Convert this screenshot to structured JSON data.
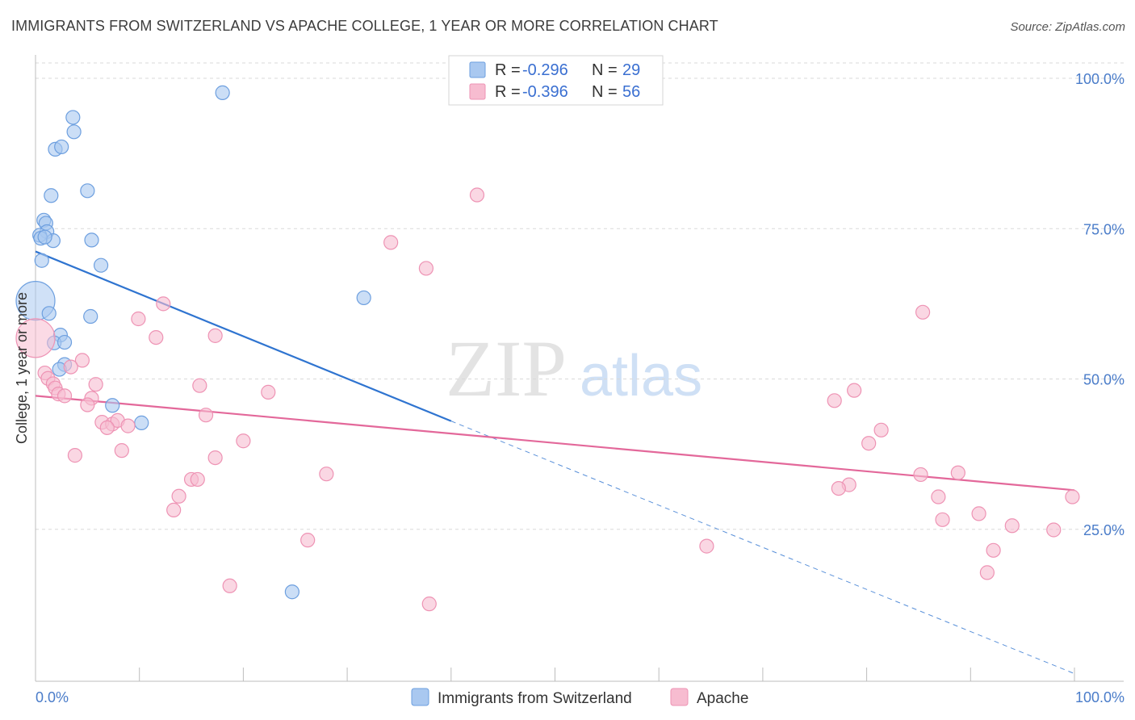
{
  "title": "IMMIGRANTS FROM SWITZERLAND VS APACHE COLLEGE, 1 YEAR OR MORE CORRELATION CHART",
  "source": "Source: ZipAtlas.com",
  "watermark": {
    "zip": "ZIP",
    "atlas": "atlas"
  },
  "colors": {
    "blue_fill": "#a9c8f0",
    "blue_stroke": "#6d9fdf",
    "blue_line": "#2f74d0",
    "pink_fill": "#f7bcd0",
    "pink_stroke": "#ee93b4",
    "pink_line": "#e3689a",
    "tick_text": "#4a7cc9",
    "grid": "#d9d9d9"
  },
  "legend": {
    "series": [
      {
        "r_label": "R =",
        "r_value": "-0.296",
        "n_label": "N =",
        "n_value": "29"
      },
      {
        "r_label": "R =",
        "r_value": "-0.396",
        "n_label": "N =",
        "n_value": "56"
      }
    ]
  },
  "chart_data": {
    "type": "scatter",
    "title": "IMMIGRANTS FROM SWITZERLAND VS APACHE COLLEGE, 1 YEAR OR MORE CORRELATION CHART",
    "xlabel": "",
    "ylabel": "College, 1 year or more",
    "xlim": [
      0,
      100
    ],
    "ylim": [
      0,
      102
    ],
    "x_tick_labels": {
      "left": "0.0%",
      "right": "100.0%"
    },
    "y_ticks": [
      {
        "value": 100,
        "label": "100.0%"
      },
      {
        "value": 75,
        "label": "75.0%"
      },
      {
        "value": 50,
        "label": "50.0%"
      },
      {
        "value": 25,
        "label": "25.0%"
      }
    ],
    "series": [
      {
        "name": "Immigrants from Switzerland",
        "color": "blue",
        "r": -0.296,
        "n": 29,
        "trend": {
          "x0": 0,
          "y0": 71.2,
          "x1": 40,
          "y1": 43.0
        },
        "trend_extension": {
          "x0": 40,
          "y0": 43.0,
          "x1": 100,
          "y1": 1.0
        },
        "points": [
          {
            "x": 18.0,
            "y": 97.6
          },
          {
            "x": 3.6,
            "y": 93.5
          },
          {
            "x": 3.7,
            "y": 91.1
          },
          {
            "x": 1.9,
            "y": 88.2
          },
          {
            "x": 2.5,
            "y": 88.6
          },
          {
            "x": 5.0,
            "y": 81.3
          },
          {
            "x": 1.5,
            "y": 80.5
          },
          {
            "x": 0.8,
            "y": 76.4
          },
          {
            "x": 1.0,
            "y": 75.9
          },
          {
            "x": 1.1,
            "y": 74.5
          },
          {
            "x": 0.4,
            "y": 73.9
          },
          {
            "x": 0.5,
            "y": 73.4
          },
          {
            "x": 1.7,
            "y": 73.0
          },
          {
            "x": 5.4,
            "y": 73.1
          },
          {
            "x": 0.6,
            "y": 69.7
          },
          {
            "x": 6.3,
            "y": 68.9
          },
          {
            "x": 0.0,
            "y": 63.0,
            "big": true
          },
          {
            "x": 31.6,
            "y": 63.5
          },
          {
            "x": 1.3,
            "y": 60.9
          },
          {
            "x": 5.3,
            "y": 60.4
          },
          {
            "x": 2.4,
            "y": 57.3
          },
          {
            "x": 1.8,
            "y": 56.0
          },
          {
            "x": 2.8,
            "y": 56.1
          },
          {
            "x": 2.8,
            "y": 52.4
          },
          {
            "x": 2.3,
            "y": 51.6
          },
          {
            "x": 7.4,
            "y": 45.6
          },
          {
            "x": 10.2,
            "y": 42.7
          },
          {
            "x": 24.7,
            "y": 14.6
          },
          {
            "x": 0.9,
            "y": 73.6
          }
        ]
      },
      {
        "name": "Apache",
        "color": "pink",
        "r": -0.396,
        "n": 56,
        "trend": {
          "x0": 0,
          "y0": 47.2,
          "x1": 100,
          "y1": 31.5
        },
        "points": [
          {
            "x": 42.5,
            "y": 80.6
          },
          {
            "x": 34.2,
            "y": 72.7
          },
          {
            "x": 37.6,
            "y": 68.4
          },
          {
            "x": 12.3,
            "y": 62.5
          },
          {
            "x": 9.9,
            "y": 60.0
          },
          {
            "x": 0.0,
            "y": 56.8,
            "big": true
          },
          {
            "x": 11.6,
            "y": 56.9
          },
          {
            "x": 17.3,
            "y": 57.2
          },
          {
            "x": 4.5,
            "y": 53.1
          },
          {
            "x": 3.4,
            "y": 52.0
          },
          {
            "x": 0.9,
            "y": 51.0
          },
          {
            "x": 1.2,
            "y": 50.1
          },
          {
            "x": 1.7,
            "y": 49.2
          },
          {
            "x": 1.9,
            "y": 48.5
          },
          {
            "x": 2.2,
            "y": 47.5
          },
          {
            "x": 2.8,
            "y": 47.2
          },
          {
            "x": 5.8,
            "y": 49.1
          },
          {
            "x": 15.8,
            "y": 48.9
          },
          {
            "x": 22.4,
            "y": 47.8
          },
          {
            "x": 5.4,
            "y": 46.8
          },
          {
            "x": 5.0,
            "y": 45.7
          },
          {
            "x": 16.4,
            "y": 44.0
          },
          {
            "x": 6.4,
            "y": 42.8
          },
          {
            "x": 7.4,
            "y": 42.5
          },
          {
            "x": 7.9,
            "y": 43.1
          },
          {
            "x": 6.9,
            "y": 41.9
          },
          {
            "x": 8.9,
            "y": 42.2
          },
          {
            "x": 20.0,
            "y": 39.7
          },
          {
            "x": 8.3,
            "y": 38.1
          },
          {
            "x": 3.8,
            "y": 37.3
          },
          {
            "x": 17.3,
            "y": 36.9
          },
          {
            "x": 28.0,
            "y": 34.2
          },
          {
            "x": 15.0,
            "y": 33.3
          },
          {
            "x": 15.6,
            "y": 33.3
          },
          {
            "x": 13.8,
            "y": 30.5
          },
          {
            "x": 13.3,
            "y": 28.2
          },
          {
            "x": 26.2,
            "y": 23.2
          },
          {
            "x": 18.7,
            "y": 15.6
          },
          {
            "x": 37.9,
            "y": 12.6
          },
          {
            "x": 64.6,
            "y": 22.2
          },
          {
            "x": 85.4,
            "y": 61.1
          },
          {
            "x": 78.8,
            "y": 48.1
          },
          {
            "x": 76.9,
            "y": 46.4
          },
          {
            "x": 81.4,
            "y": 41.5
          },
          {
            "x": 80.2,
            "y": 39.3
          },
          {
            "x": 85.2,
            "y": 34.1
          },
          {
            "x": 88.8,
            "y": 34.4
          },
          {
            "x": 78.3,
            "y": 32.4
          },
          {
            "x": 77.3,
            "y": 31.8
          },
          {
            "x": 86.9,
            "y": 30.4
          },
          {
            "x": 99.8,
            "y": 30.4
          },
          {
            "x": 90.8,
            "y": 27.6
          },
          {
            "x": 87.3,
            "y": 26.6
          },
          {
            "x": 94.0,
            "y": 25.6
          },
          {
            "x": 98.0,
            "y": 24.9
          },
          {
            "x": 92.2,
            "y": 21.5
          },
          {
            "x": 91.6,
            "y": 17.8
          }
        ]
      }
    ]
  }
}
